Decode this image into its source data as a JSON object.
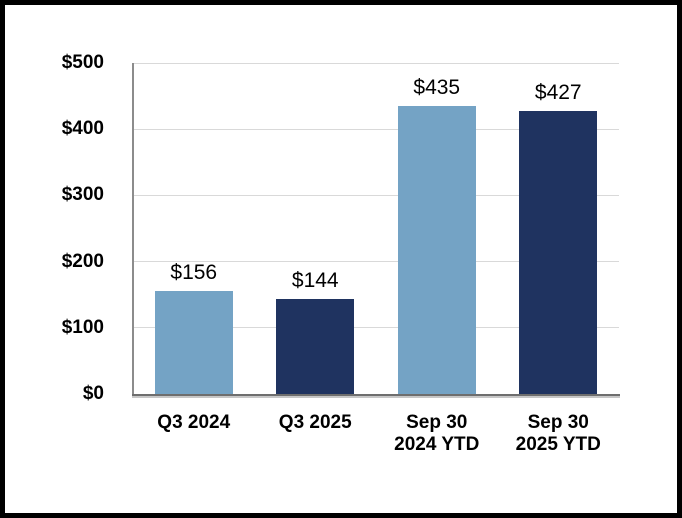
{
  "chart_data": {
    "type": "bar",
    "title": "",
    "xlabel": "",
    "ylabel": "",
    "categories": [
      "Q3 2024",
      "Q3 2025",
      "Sep 30\n2024 YTD",
      "Sep 30\n2025 YTD"
    ],
    "values": [
      156,
      144,
      435,
      427
    ],
    "value_labels": [
      "$156",
      "$144",
      "$435",
      "$427"
    ],
    "bar_colors": [
      "#74A3C5",
      "#1F3360",
      "#74A3C5",
      "#1F3360"
    ],
    "ylim": [
      0,
      500
    ],
    "y_ticks": [
      {
        "value": 0,
        "label": "$0"
      },
      {
        "value": 100,
        "label": "$100"
      },
      {
        "value": 200,
        "label": "$200"
      },
      {
        "value": 300,
        "label": "$300"
      },
      {
        "value": 400,
        "label": "$400"
      },
      {
        "value": 500,
        "label": "$500"
      }
    ],
    "grid": "horizontal gridlines at $100 intervals",
    "legend_position": "none"
  },
  "colors": {
    "bar_light_blue": "#74A3C5",
    "bar_dark_navy": "#1F3360",
    "gridline": "#D9D9D9",
    "y_axis_line": "#8C8C8C",
    "x_axis_line": "#6E6E6E",
    "frame_border": "#000000",
    "background": "#FFFFFF",
    "text": "#000000"
  }
}
